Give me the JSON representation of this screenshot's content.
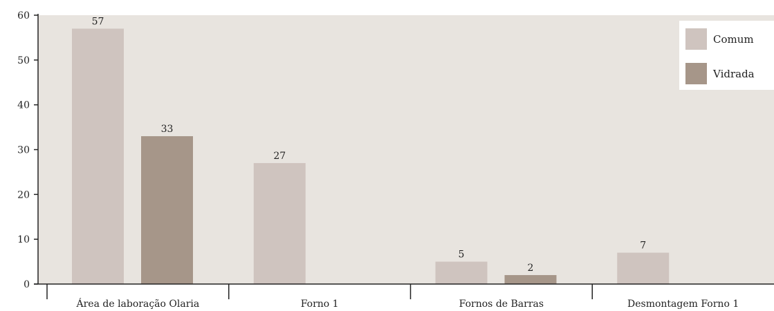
{
  "chart_data": {
    "type": "bar",
    "categories": [
      "Área de laboração Olaria",
      "Forno 1",
      "Fornos de Barras",
      "Desmontagem Forno 1"
    ],
    "series": [
      {
        "name": "Comum",
        "values": [
          57,
          27,
          5,
          7
        ],
        "color": "#cfc4bf"
      },
      {
        "name": "Vidrada",
        "values": [
          33,
          null,
          2,
          null
        ],
        "color": "#a69689"
      }
    ],
    "ylim": [
      0,
      60
    ],
    "yticks": [
      0,
      10,
      20,
      30,
      40,
      50,
      60
    ],
    "legend_position": "top-right",
    "plot_background": "#e8e4df",
    "grid": false
  }
}
